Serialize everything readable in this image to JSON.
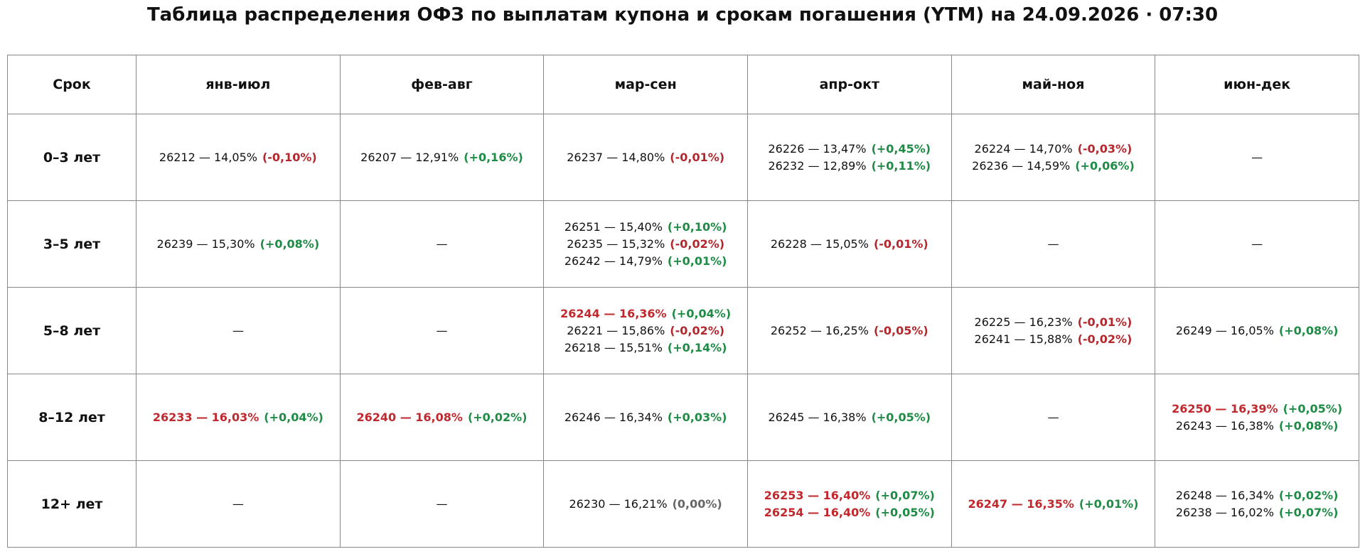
{
  "title": "Таблица распределения ОФЗ по выплатам купона и срокам погашения (YTM) на 24.09.2026 · 07:30",
  "colors": {
    "up": "#1e8c45",
    "down": "#b3282d",
    "flat": "#666666",
    "highlight": "#c0282d"
  },
  "table": {
    "header": [
      "Срок",
      "янв-июл",
      "фев-авг",
      "мар-сен",
      "апр-окт",
      "май-ноя",
      "июн-дек"
    ],
    "rows": [
      {
        "label": "0–3 лет",
        "cells": [
          [
            {
              "bond": "26212 — 14,05%",
              "change": "(-0,10%)"
            }
          ],
          [
            {
              "bond": "26207 — 12,91%",
              "change": "(+0,16%)"
            }
          ],
          [
            {
              "bond": "26237 — 14,80%",
              "change": "(-0,01%)"
            }
          ],
          [
            {
              "bond": "26226 — 13,47%",
              "change": "(+0,45%)"
            },
            {
              "bond": "26232 — 12,89%",
              "change": "(+0,11%)"
            }
          ],
          [
            {
              "bond": "26224 — 14,70%",
              "change": "(-0,03%)"
            },
            {
              "bond": "26236 — 14,59%",
              "change": "(+0,06%)"
            }
          ],
          "—"
        ]
      },
      {
        "label": "3–5 лет",
        "cells": [
          [
            {
              "bond": "26239 — 15,30%",
              "change": "(+0,08%)"
            }
          ],
          "—",
          [
            {
              "bond": "26251 — 15,40%",
              "change": "(+0,10%)"
            },
            {
              "bond": "26235 — 15,32%",
              "change": "(-0,02%)"
            },
            {
              "bond": "26242 — 14,79%",
              "change": "(+0,01%)"
            }
          ],
          [
            {
              "bond": "26228 — 15,05%",
              "change": "(-0,01%)"
            }
          ],
          "—",
          "—"
        ]
      },
      {
        "label": "5–8 лет",
        "cells": [
          "—",
          "—",
          [
            {
              "bond": "26244 — 16,36%",
              "change": "(+0,04%)",
              "highlight": true
            },
            {
              "bond": "26221 — 15,86%",
              "change": "(-0,02%)"
            },
            {
              "bond": "26218 — 15,51%",
              "change": "(+0,14%)"
            }
          ],
          [
            {
              "bond": "26252 — 16,25%",
              "change": "(-0,05%)"
            }
          ],
          [
            {
              "bond": "26225 — 16,23%",
              "change": "(-0,01%)"
            },
            {
              "bond": "26241 — 15,88%",
              "change": "(-0,02%)"
            }
          ],
          [
            {
              "bond": "26249 — 16,05%",
              "change": "(+0,08%)"
            }
          ]
        ]
      },
      {
        "label": "8–12 лет",
        "cells": [
          [
            {
              "bond": "26233 — 16,03%",
              "change": "(+0,04%)",
              "highlight": true
            }
          ],
          [
            {
              "bond": "26240 — 16,08%",
              "change": "(+0,02%)",
              "highlight": true
            }
          ],
          [
            {
              "bond": "26246 — 16,34%",
              "change": "(+0,03%)"
            }
          ],
          [
            {
              "bond": "26245 — 16,38%",
              "change": "(+0,05%)"
            }
          ],
          "—",
          [
            {
              "bond": "26250 — 16,39%",
              "change": "(+0,05%)",
              "highlight": true
            },
            {
              "bond": "26243 — 16,38%",
              "change": "(+0,08%)"
            }
          ]
        ]
      },
      {
        "label": "12+ лет",
        "cells": [
          "—",
          "—",
          [
            {
              "bond": "26230 — 16,21%",
              "change": "(0,00%)"
            }
          ],
          [
            {
              "bond": "26253 — 16,40%",
              "change": "(+0,07%)",
              "highlight": true
            },
            {
              "bond": "26254 — 16,40%",
              "change": "(+0,05%)",
              "highlight": true
            }
          ],
          [
            {
              "bond": "26247 — 16,35%",
              "change": "(+0,01%)",
              "highlight": true
            }
          ],
          [
            {
              "bond": "26248 — 16,34%",
              "change": "(+0,02%)"
            },
            {
              "bond": "26238 — 16,02%",
              "change": "(+0,07%)"
            }
          ]
        ]
      }
    ]
  }
}
